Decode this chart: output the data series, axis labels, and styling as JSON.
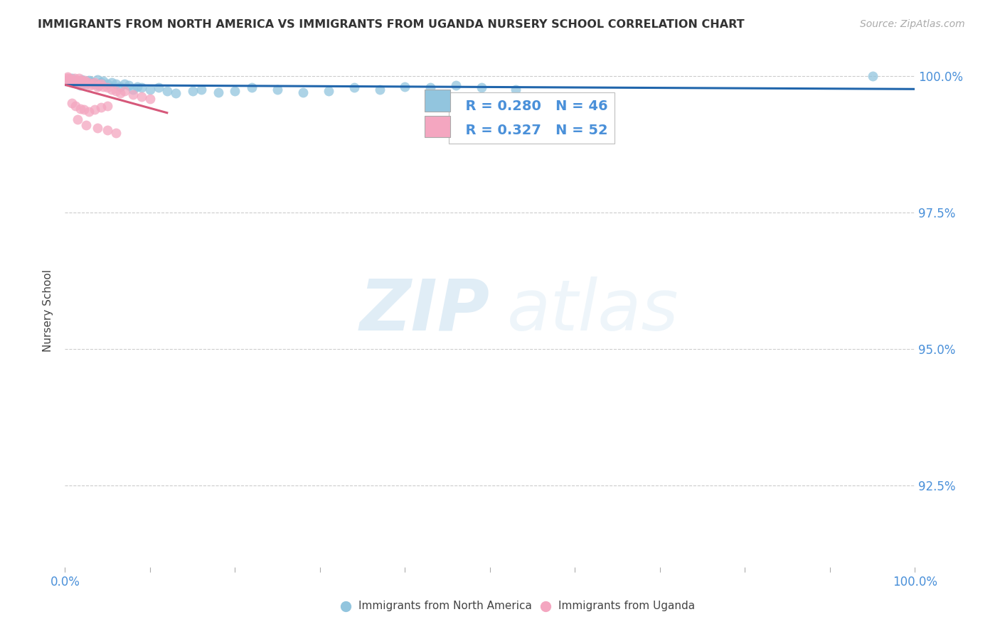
{
  "title": "IMMIGRANTS FROM NORTH AMERICA VS IMMIGRANTS FROM UGANDA NURSERY SCHOOL CORRELATION CHART",
  "source": "Source: ZipAtlas.com",
  "ylabel": "Nursery School",
  "ylabel_ticks": [
    "100.0%",
    "97.5%",
    "95.0%",
    "92.5%"
  ],
  "ylabel_tick_vals": [
    1.0,
    0.975,
    0.95,
    0.925
  ],
  "legend_blue_R": "R = 0.280",
  "legend_blue_N": "N = 46",
  "legend_pink_R": "R = 0.327",
  "legend_pink_N": "N = 52",
  "legend_blue_label": "Immigrants from North America",
  "legend_pink_label": "Immigrants from Uganda",
  "watermark_zip": "ZIP",
  "watermark_atlas": "atlas",
  "blue_color": "#92c5de",
  "pink_color": "#f4a6c0",
  "line_blue": "#2166ac",
  "line_pink": "#d6587a",
  "blue_scatter_x": [
    0.005,
    0.008,
    0.01,
    0.012,
    0.015,
    0.018,
    0.02,
    0.022,
    0.025,
    0.028,
    0.03,
    0.032,
    0.035,
    0.038,
    0.04,
    0.042,
    0.045,
    0.05,
    0.055,
    0.06,
    0.065,
    0.07,
    0.075,
    0.08,
    0.085,
    0.09,
    0.1,
    0.11,
    0.12,
    0.13,
    0.15,
    0.16,
    0.18,
    0.2,
    0.22,
    0.25,
    0.28,
    0.31,
    0.34,
    0.37,
    0.4,
    0.43,
    0.46,
    0.49,
    0.53,
    0.95
  ],
  "blue_scatter_y": [
    0.9992,
    0.9995,
    0.9988,
    0.999,
    0.9985,
    0.9982,
    0.9993,
    0.9988,
    0.9985,
    0.9992,
    0.999,
    0.9988,
    0.9985,
    0.9993,
    0.9982,
    0.9988,
    0.999,
    0.9985,
    0.9988,
    0.9985,
    0.998,
    0.9985,
    0.9982,
    0.9975,
    0.998,
    0.9978,
    0.9975,
    0.9978,
    0.9972,
    0.9968,
    0.9972,
    0.9975,
    0.997,
    0.9972,
    0.9978,
    0.9975,
    0.997,
    0.9972,
    0.9978,
    0.9975,
    0.998,
    0.9978,
    0.9982,
    0.9978,
    0.9975,
    1.0
  ],
  "pink_scatter_x": [
    0.002,
    0.003,
    0.004,
    0.005,
    0.006,
    0.007,
    0.008,
    0.009,
    0.01,
    0.011,
    0.012,
    0.013,
    0.014,
    0.015,
    0.016,
    0.017,
    0.018,
    0.019,
    0.02,
    0.021,
    0.022,
    0.023,
    0.025,
    0.027,
    0.03,
    0.032,
    0.035,
    0.038,
    0.04,
    0.042,
    0.045,
    0.05,
    0.055,
    0.06,
    0.065,
    0.07,
    0.08,
    0.09,
    0.1,
    0.008,
    0.012,
    0.018,
    0.022,
    0.028,
    0.035,
    0.042,
    0.05,
    0.015,
    0.025,
    0.038,
    0.05,
    0.06
  ],
  "pink_scatter_y": [
    0.9995,
    0.9998,
    0.9992,
    0.9995,
    0.999,
    0.9993,
    0.9988,
    0.9992,
    0.999,
    0.9995,
    0.9988,
    0.9992,
    0.999,
    0.9988,
    0.9995,
    0.999,
    0.9992,
    0.9988,
    0.9985,
    0.999,
    0.9988,
    0.9992,
    0.9985,
    0.9988,
    0.9982,
    0.9985,
    0.9988,
    0.998,
    0.9982,
    0.9985,
    0.998,
    0.9978,
    0.9975,
    0.9972,
    0.9968,
    0.9972,
    0.9965,
    0.9962,
    0.9958,
    0.995,
    0.9945,
    0.994,
    0.9938,
    0.9935,
    0.9938,
    0.9942,
    0.9945,
    0.992,
    0.991,
    0.9905,
    0.99,
    0.9895
  ],
  "xlim": [
    0.0,
    1.0
  ],
  "ylim": [
    0.91,
    1.004
  ],
  "blue_line_x": [
    0.0,
    1.0
  ],
  "blue_line_y": [
    0.9965,
    0.999
  ],
  "pink_line_x": [
    0.0,
    0.12
  ],
  "pink_line_y": [
    0.992,
    0.9998
  ],
  "background_color": "#ffffff"
}
